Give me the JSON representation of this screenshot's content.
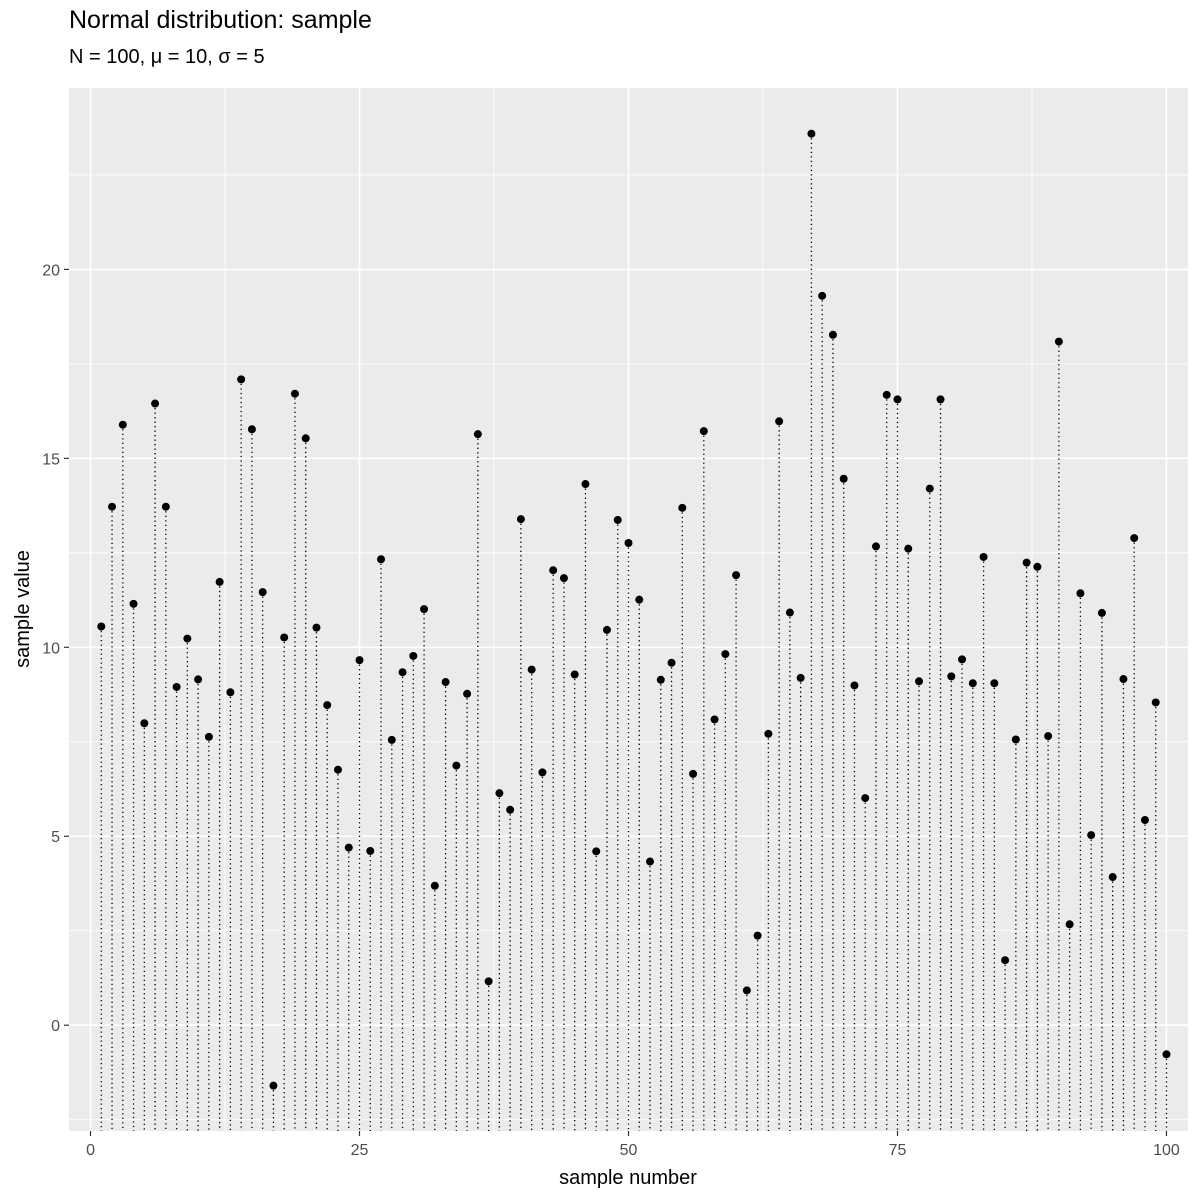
{
  "chart_data": {
    "type": "scatter",
    "title": "Normal distribution: sample",
    "subtitle": "N = 100, μ = 10, σ = 5",
    "xlabel": "sample number",
    "ylabel": "sample value",
    "xlim": [
      -2,
      102
    ],
    "ylim": [
      -2.8,
      24.8
    ],
    "xticks": [
      0,
      25,
      50,
      75,
      100
    ],
    "yticks": [
      0,
      5,
      10,
      15,
      20
    ],
    "grid": true,
    "style": "points with dotted drops to baseline",
    "x": [
      1,
      2,
      3,
      4,
      5,
      6,
      7,
      8,
      9,
      10,
      11,
      12,
      13,
      14,
      15,
      16,
      17,
      18,
      19,
      20,
      21,
      22,
      23,
      24,
      25,
      26,
      27,
      28,
      29,
      30,
      31,
      32,
      33,
      34,
      35,
      36,
      37,
      38,
      39,
      40,
      41,
      42,
      43,
      44,
      45,
      46,
      47,
      48,
      49,
      50,
      51,
      52,
      53,
      54,
      55,
      56,
      57,
      58,
      59,
      60,
      61,
      62,
      63,
      64,
      65,
      66,
      67,
      68,
      69,
      70,
      71,
      72,
      73,
      74,
      75,
      76,
      77,
      78,
      79,
      80,
      81,
      82,
      83,
      84,
      85,
      86,
      87,
      88,
      89,
      90,
      91,
      92,
      93,
      94,
      95,
      96,
      97,
      98,
      99,
      100
    ],
    "y": [
      10.55,
      13.72,
      15.89,
      11.15,
      7.99,
      16.45,
      13.72,
      8.95,
      10.23,
      9.15,
      7.63,
      11.73,
      8.81,
      17.09,
      15.77,
      11.46,
      -1.6,
      10.26,
      16.71,
      15.53,
      10.52,
      8.47,
      6.76,
      4.7,
      9.66,
      4.61,
      12.33,
      7.55,
      9.34,
      9.77,
      11.01,
      3.69,
      9.08,
      6.87,
      8.77,
      15.64,
      1.16,
      6.14,
      5.7,
      13.39,
      9.41,
      6.69,
      12.04,
      11.83,
      9.28,
      14.32,
      4.6,
      10.46,
      13.37,
      12.76,
      11.26,
      4.33,
      9.14,
      9.59,
      13.69,
      6.65,
      15.72,
      8.09,
      9.82,
      11.91,
      0.92,
      2.37,
      7.71,
      15.98,
      10.92,
      9.19,
      23.59,
      19.3,
      18.27,
      14.46,
      8.99,
      6.01,
      12.67,
      16.68,
      16.56,
      12.61,
      9.1,
      14.2,
      16.56,
      9.23,
      9.68,
      9.05,
      12.39,
      9.05,
      1.72,
      7.56,
      12.24,
      12.13,
      7.65,
      18.09,
      2.67,
      11.43,
      5.03,
      10.91,
      3.92,
      9.16,
      12.89,
      5.43,
      8.54,
      -0.77
    ]
  }
}
